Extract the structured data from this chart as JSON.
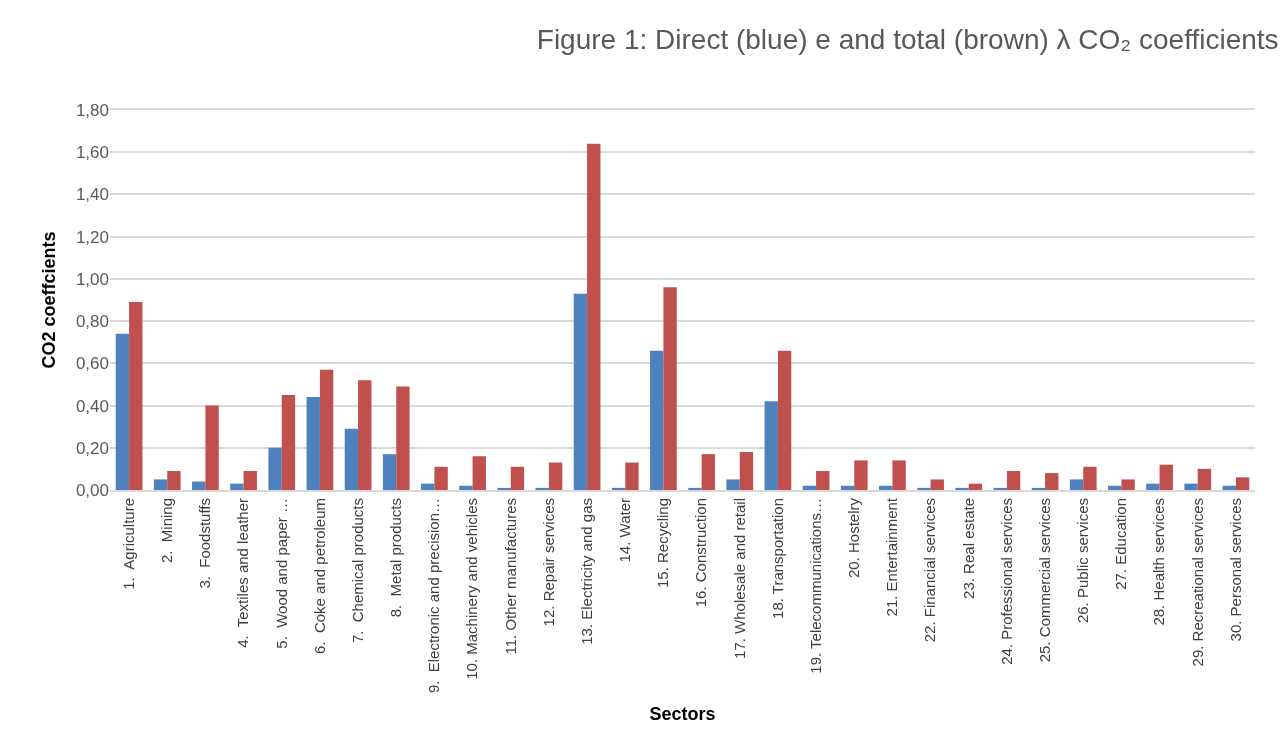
{
  "chart_data": {
    "type": "bar",
    "title": "Figure 1: Direct (blue) e and total (brown) λ CO₂ coefficients",
    "xlabel": "Sectors",
    "ylabel": "CO2 coeffcients",
    "categories": [
      "1.  Agriculture",
      "2.  Mining",
      "3.  Foodstuffs",
      "4.  Textiles and leather",
      "5.  Wood and paper …",
      "6.  Coke and petroleum",
      "7.  Chemical products",
      "8.  Metal products",
      "9.  Electronic and precision…",
      "10. Machinery and vehicles",
      "11. Other manufactures",
      "12. Repair services",
      "13. Electricity and gas",
      "14. Water",
      "15. Recycling",
      "16. Construction",
      "17. Wholesale and retail",
      "18. Transportation",
      "19. Telecommunications…",
      "20. Hostelry",
      "21. Entertainment",
      "22. Financial services",
      "23. Real estate",
      "24. Professional services",
      "25. Commercial services",
      "26. Public services",
      "27. Education",
      "28. Health services",
      "29. Recreational services",
      "30. Personal services"
    ],
    "series": [
      {
        "color": "#4f81bd",
        "values": [
          0.74,
          0.05,
          0.04,
          0.03,
          0.2,
          0.44,
          0.29,
          0.17,
          0.03,
          0.02,
          0.01,
          0.01,
          0.93,
          0.01,
          0.66,
          0.01,
          0.05,
          0.42,
          0.02,
          0.02,
          0.02,
          0.01,
          0.01,
          0.01,
          0.01,
          0.05,
          0.02,
          0.03,
          0.03,
          0.02
        ]
      },
      {
        "color": "#c0504d",
        "values": [
          0.89,
          0.09,
          0.4,
          0.09,
          0.45,
          0.57,
          0.52,
          0.49,
          0.11,
          0.16,
          0.11,
          0.13,
          1.64,
          0.13,
          0.96,
          0.17,
          0.18,
          0.66,
          0.09,
          0.14,
          0.14,
          0.05,
          0.03,
          0.09,
          0.08,
          0.11,
          0.05,
          0.12,
          0.1,
          0.06
        ]
      }
    ],
    "ylim": [
      0,
      1.8
    ],
    "yticks": [
      {
        "value": 0,
        "label": "0,00"
      },
      {
        "value": 0.2,
        "label": "0,20"
      },
      {
        "value": 0.4,
        "label": "0,40"
      },
      {
        "value": 0.6,
        "label": "0,60"
      },
      {
        "value": 0.8,
        "label": "0,80"
      },
      {
        "value": 1.0,
        "label": "1,00"
      },
      {
        "value": 1.2,
        "label": "1,20"
      },
      {
        "value": 1.4,
        "label": "1,40"
      },
      {
        "value": 1.6,
        "label": "1,60"
      },
      {
        "value": 1.8,
        "label": "1,80"
      }
    ],
    "grid": "y"
  }
}
